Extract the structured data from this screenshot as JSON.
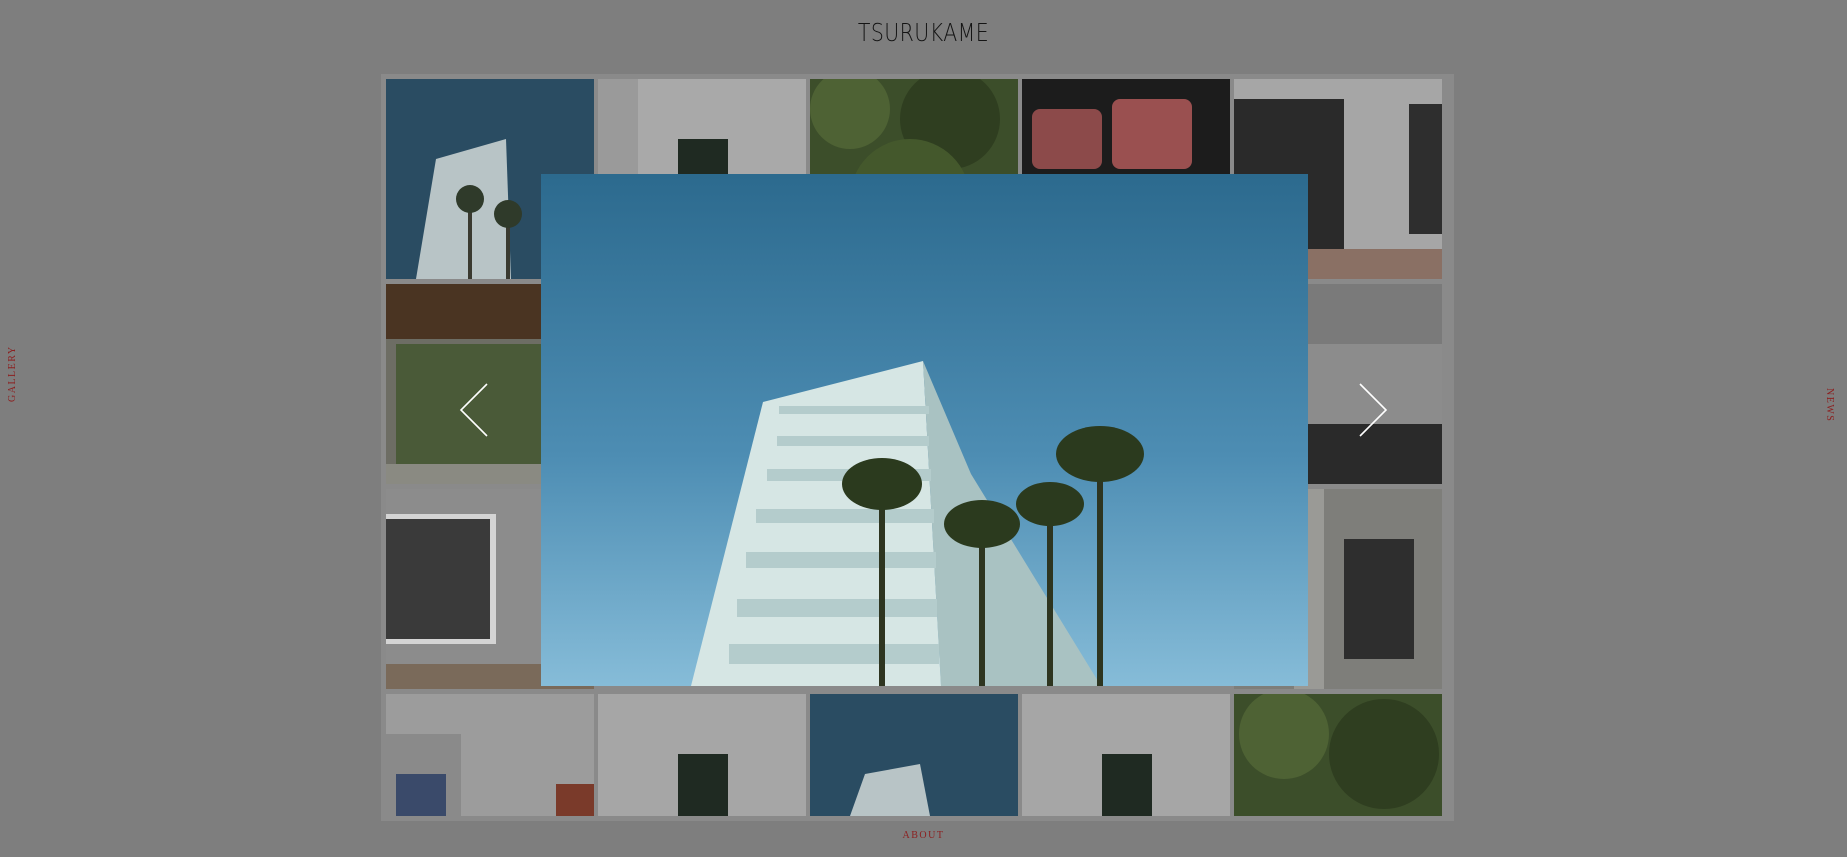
{
  "site": {
    "logo_text": "TSURUKAME"
  },
  "nav": {
    "left_label": "GALLERY",
    "right_label": "NEWS",
    "bottom_label": "ABOUT"
  },
  "lightbox": {
    "image_subject": "white building with palm trees against blue sky",
    "prev_icon": "chevron-left-icon",
    "next_icon": "chevron-right-icon"
  },
  "gallery": {
    "thumbnails": [
      "white building with palm trees",
      "white wall with dark window",
      "green trees",
      "pink armchairs",
      "black and white paintings in gallery",
      "wooden ceiling room with window",
      "gallery room with pebble floor",
      "gray landscape photograph on wall",
      "room with columns and artwork",
      "bookshelf",
      "white wall with dark window",
      "white building with palm trees",
      "white wall with dark window",
      "green trees"
    ]
  },
  "colors": {
    "overlay": "#7e7e7e",
    "link_red": "#8c2020",
    "sky_blue": "#2e6d91"
  }
}
